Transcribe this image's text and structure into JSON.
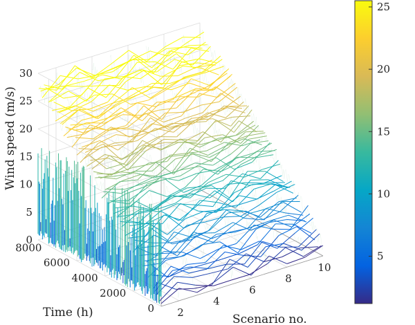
{
  "chart_data": {
    "type": "surface-mesh",
    "zlabel": "Wind speed (m/s)",
    "ylabel": "Time (h)",
    "xlabel": "Scenario no.",
    "x_ticks": [
      "2",
      "4",
      "6",
      "8",
      "10"
    ],
    "y_ticks": [
      "0",
      "2000",
      "4000",
      "6000",
      "8000"
    ],
    "z_ticks": [
      "0",
      "5",
      "10",
      "15",
      "20",
      "25",
      "30"
    ],
    "colorbar_ticks": [
      "5",
      "10",
      "15",
      "20",
      "25"
    ],
    "xlim": [
      1,
      10
    ],
    "ylim": [
      0,
      8760
    ],
    "zlim": [
      0,
      30
    ],
    "colorbar_range": [
      1.2,
      25.5
    ],
    "colormap": "parula",
    "grid": true,
    "scenarios": [
      1,
      2,
      3,
      4,
      5,
      6,
      7,
      8,
      9,
      10
    ],
    "wind_speed_range": [
      1.2,
      29
    ]
  }
}
